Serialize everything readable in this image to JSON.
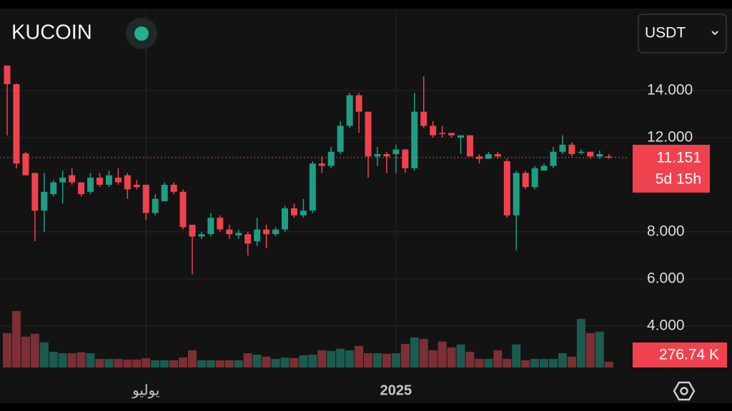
{
  "header": {
    "exchange": "KUCOIN",
    "quote_currency": "USDT"
  },
  "chart_data": {
    "type": "candlestick",
    "categories": [
      null,
      null,
      null,
      null,
      null,
      null,
      null,
      null,
      null,
      null,
      null,
      null,
      null,
      null,
      null,
      "يوليو",
      null,
      null,
      null,
      null,
      null,
      null,
      null,
      null,
      null,
      null,
      null,
      null,
      null,
      null,
      null,
      null,
      null,
      null,
      null,
      null,
      null,
      null,
      null,
      null,
      null,
      null,
      "2025",
      null,
      null,
      null,
      null,
      null,
      null,
      null,
      null,
      null,
      null,
      null,
      null,
      null,
      null,
      null,
      null,
      null,
      null,
      null,
      null,
      null,
      null,
      null
    ],
    "open": [
      15.06,
      14.27,
      11.33,
      10.5,
      8.9,
      9.6,
      10.1,
      10.4,
      10.1,
      9.7,
      10.3,
      10.0,
      10.3,
      10.4,
      10.0,
      10.0,
      8.8,
      9.3,
      10.0,
      9.7,
      8.3,
      7.8,
      7.9,
      8.6,
      8.1,
      7.85,
      7.9,
      7.6,
      8.1,
      7.9,
      8.1,
      9.0,
      8.7,
      8.9,
      10.9,
      10.8,
      11.4,
      12.5,
      13.8,
      13.1,
      11.2,
      11.3,
      11.3,
      11.5,
      10.7,
      13.1,
      12.5,
      12.2,
      12.2,
      12.0,
      12.1,
      11.2,
      11.1,
      11.3,
      11.0,
      8.7,
      10.5,
      9.9,
      10.6,
      10.8,
      11.4,
      11.7,
      11.35,
      11.4,
      11.2,
      11.2
    ],
    "high": [
      15.06,
      14.3,
      11.4,
      10.5,
      10.5,
      10.2,
      10.6,
      10.7,
      10.1,
      10.5,
      10.5,
      10.6,
      10.7,
      10.5,
      10.2,
      10.0,
      9.6,
      10.1,
      10.1,
      9.8,
      8.3,
      8.0,
      8.8,
      8.7,
      8.3,
      8.1,
      8.0,
      8.6,
      8.3,
      8.2,
      9.1,
      9.2,
      9.4,
      11.0,
      11.2,
      11.6,
      12.7,
      13.9,
      13.9,
      13.1,
      11.6,
      11.4,
      11.7,
      11.5,
      13.9,
      14.6,
      12.7,
      12.5,
      12.2,
      12.1,
      12.1,
      11.3,
      11.4,
      11.4,
      11.1,
      10.6,
      10.6,
      10.8,
      10.9,
      11.6,
      12.1,
      11.8,
      11.5,
      11.4,
      11.45,
      11.3
    ],
    "low": [
      12.09,
      10.7,
      10.4,
      7.6,
      8.0,
      9.5,
      9.2,
      10.0,
      9.5,
      9.6,
      9.9,
      9.9,
      10.0,
      9.4,
      9.8,
      8.5,
      8.7,
      9.3,
      9.6,
      8.1,
      6.2,
      7.7,
      7.8,
      8.0,
      7.7,
      7.7,
      7.0,
      7.4,
      7.3,
      7.8,
      8.0,
      8.6,
      8.6,
      8.8,
      10.5,
      10.7,
      11.3,
      12.4,
      12.2,
      10.3,
      10.8,
      10.5,
      10.5,
      10.5,
      10.6,
      12.4,
      12.0,
      12.0,
      12.0,
      11.3,
      11.2,
      10.9,
      11.1,
      11.1,
      8.6,
      7.2,
      9.8,
      9.8,
      10.6,
      10.7,
      11.3,
      11.2,
      11.3,
      11.1,
      11.1,
      11.1
    ],
    "close": [
      14.27,
      10.9,
      10.4,
      8.9,
      9.7,
      10.1,
      10.3,
      10.1,
      9.6,
      10.3,
      10.0,
      10.4,
      10.1,
      9.8,
      9.9,
      8.8,
      9.4,
      10.0,
      9.7,
      8.2,
      7.8,
      7.9,
      8.6,
      8.1,
      7.9,
      7.95,
      7.5,
      8.1,
      7.9,
      8.1,
      9.0,
      8.7,
      8.9,
      10.9,
      10.8,
      11.4,
      12.5,
      13.8,
      13.1,
      11.2,
      11.3,
      11.2,
      11.5,
      10.7,
      13.1,
      12.5,
      12.1,
      12.15,
      12.1,
      12.1,
      11.2,
      11.1,
      11.3,
      11.2,
      8.7,
      10.5,
      9.9,
      10.7,
      10.8,
      11.4,
      11.7,
      11.3,
      11.4,
      11.2,
      11.3,
      11.151
    ],
    "up_color": "#1e9e84",
    "down_color": "#f0424e",
    "countdown": "5d 15h",
    "ylim": [
      2.24,
      17.39
    ],
    "yticks": [
      {
        "value": 4,
        "label": "4.000"
      },
      {
        "value": 6,
        "label": "6.000"
      },
      {
        "value": 8,
        "label": "8.000"
      },
      {
        "value": 12,
        "label": "12.000"
      },
      {
        "value": 14,
        "label": "14.000"
      }
    ],
    "grid": true,
    "volume": {
      "values": [
        1660,
        2730,
        1490,
        1630,
        1210,
        760,
        690,
        690,
        730,
        690,
        415,
        415,
        415,
        380,
        380,
        450,
        345,
        345,
        345,
        480,
        830,
        345,
        345,
        345,
        345,
        345,
        690,
        620,
        520,
        415,
        480,
        450,
        590,
        620,
        830,
        800,
        900,
        830,
        1040,
        690,
        690,
        660,
        690,
        1140,
        1450,
        1380,
        830,
        1250,
        970,
        1110,
        760,
        415,
        415,
        830,
        415,
        1110,
        345,
        415,
        415,
        415,
        690,
        520,
        2350,
        1660,
        1730,
        276.74
      ],
      "label": "276.74 K",
      "ylim": [
        0,
        3000
      ],
      "up_color": "#1c5b50",
      "down_color": "#7d2f35"
    }
  }
}
